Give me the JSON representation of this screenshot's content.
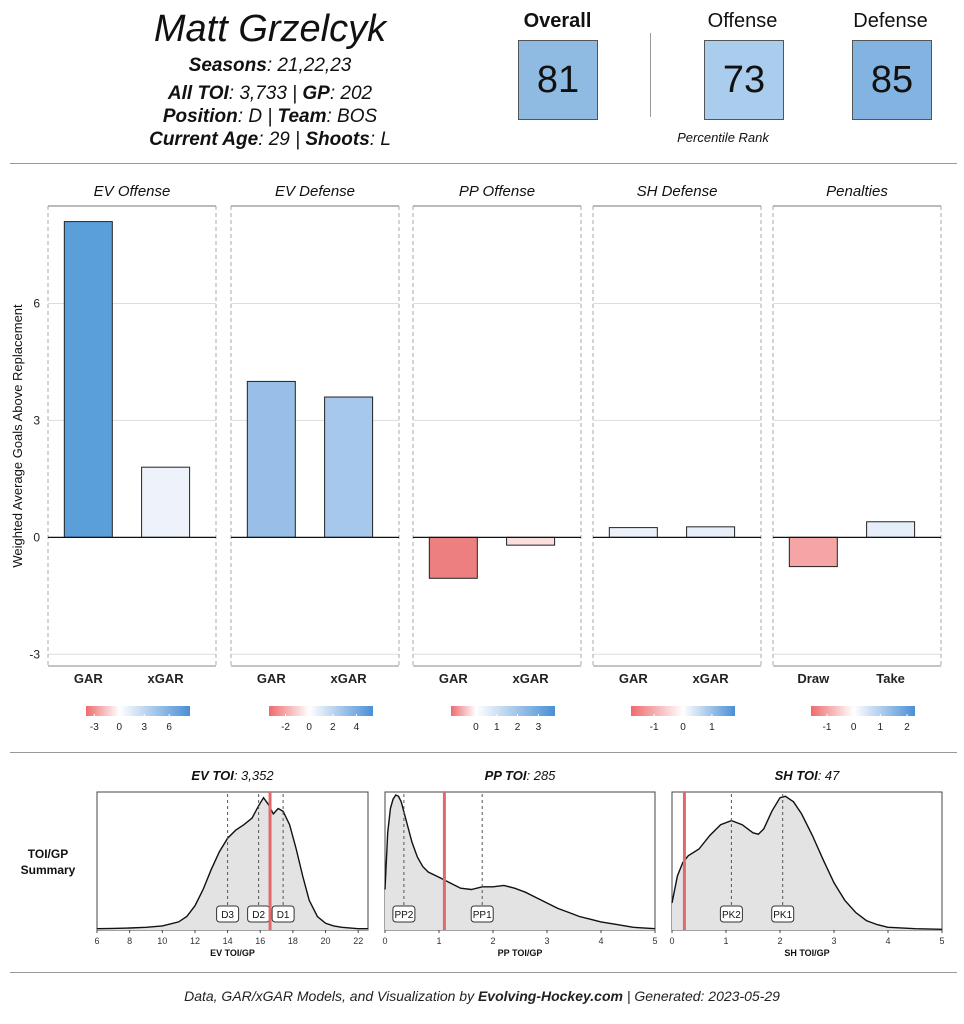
{
  "player": {
    "name": "Matt Grzelcyk",
    "seasons_label": "Seasons",
    "seasons_value": ": 21,22,23",
    "toi_label": "All TOI",
    "toi_value": ": 3,733 | ",
    "gp_label": "GP",
    "gp_value": ": 202",
    "position_label": "Position",
    "position_value": ": D | ",
    "team_label": "Team",
    "team_value": ": BOS",
    "age_label": "Current Age",
    "age_value": ": 29 | ",
    "shoots_label": "Shoots",
    "shoots_value": ": L"
  },
  "ranks": {
    "overall_label": "Overall",
    "overall_value": "81",
    "offense_label": "Offense",
    "offense_value": "73",
    "defense_label": "Defense",
    "defense_value": "85",
    "caption": "Percentile Rank",
    "colors": {
      "overall": "#8fbbe3",
      "offense": "#aacdee",
      "defense": "#83b3e1"
    }
  },
  "chart_data": [
    {
      "type": "bar",
      "title": "Weighted Average Goals Above Replacement by component",
      "ylabel": "Weighted Average Goals Above Replacement",
      "ylim": [
        -3.3,
        8.5
      ],
      "yticks": [
        -3,
        0,
        3,
        6
      ],
      "yticks_labels": [
        "-3",
        "0",
        "3",
        "6"
      ],
      "panels": [
        {
          "title": "EV Offense",
          "categories": [
            "GAR",
            "xGAR"
          ],
          "values": [
            8.1,
            1.8
          ],
          "colors": [
            "#5b9fd9",
            "#eef3fb"
          ],
          "legend": {
            "range": [
              -4,
              8.5
            ],
            "ticks": [
              -3,
              0,
              3,
              6
            ],
            "labels": [
              "-3",
              "0",
              "3",
              "6"
            ]
          }
        },
        {
          "title": "EV Defense",
          "categories": [
            "GAR",
            "xGAR"
          ],
          "values": [
            4.0,
            3.6
          ],
          "colors": [
            "#97bfe8",
            "#a6c8ec"
          ],
          "legend": {
            "range": [
              -3.4,
              5.4
            ],
            "ticks": [
              -2,
              0,
              2,
              4
            ],
            "labels": [
              "-2",
              "0",
              "2",
              "4"
            ]
          }
        },
        {
          "title": "PP Offense",
          "categories": [
            "GAR",
            "xGAR"
          ],
          "values": [
            -1.05,
            -0.2
          ],
          "colors": [
            "#ee7f80",
            "#fbdede"
          ],
          "legend": {
            "range": [
              -1.2,
              3.8
            ],
            "ticks": [
              0,
              1,
              2,
              3
            ],
            "labels": [
              "0",
              "1",
              "2",
              "3"
            ]
          }
        },
        {
          "title": "SH Defense",
          "categories": [
            "GAR",
            "xGAR"
          ],
          "values": [
            0.25,
            0.27
          ],
          "colors": [
            "#edf2fa",
            "#e8effa"
          ],
          "legend": {
            "range": [
              -1.8,
              1.8
            ],
            "ticks": [
              -1,
              0,
              1
            ],
            "labels": [
              "-1",
              "0",
              "1"
            ]
          }
        },
        {
          "title": "Penalties",
          "categories": [
            "Draw",
            "Take"
          ],
          "values": [
            -0.75,
            0.4
          ],
          "colors": [
            "#f5a5a5",
            "#e6eef9"
          ],
          "legend": {
            "range": [
              -1.6,
              2.3
            ],
            "ticks": [
              -1,
              0,
              1,
              2
            ],
            "labels": [
              "-1",
              "0",
              "1",
              "2"
            ]
          }
        }
      ]
    },
    {
      "type": "area",
      "title": "TOI/GP Summary",
      "row_label_1": "TOI/GP",
      "row_label_2": "Summary",
      "panels": [
        {
          "title_bold": "EV TOI",
          "title_rest": ": 3,352",
          "xlabel": "EV TOI/GP",
          "xlim": [
            6,
            22.6
          ],
          "xticks": [
            6,
            8,
            10,
            12,
            14,
            16,
            18,
            20,
            22
          ],
          "xtick_labels": [
            "6",
            "8",
            "10",
            "12",
            "14",
            "16",
            "18",
            "20",
            "22"
          ],
          "player_value": 16.6,
          "markers": [
            {
              "label": "D3",
              "x": 14.0
            },
            {
              "label": "D2",
              "x": 15.9
            },
            {
              "label": "D1",
              "x": 17.4
            }
          ],
          "density": [
            [
              6,
              0.01
            ],
            [
              7,
              0.012
            ],
            [
              8,
              0.015
            ],
            [
              9,
              0.02
            ],
            [
              10,
              0.03
            ],
            [
              11,
              0.06
            ],
            [
              11.5,
              0.1
            ],
            [
              12,
              0.18
            ],
            [
              12.5,
              0.3
            ],
            [
              13,
              0.45
            ],
            [
              13.5,
              0.58
            ],
            [
              14,
              0.68
            ],
            [
              14.5,
              0.74
            ],
            [
              15,
              0.78
            ],
            [
              15.5,
              0.83
            ],
            [
              15.9,
              0.92
            ],
            [
              16.2,
              0.98
            ],
            [
              16.5,
              0.93
            ],
            [
              16.8,
              0.86
            ],
            [
              17.1,
              0.9
            ],
            [
              17.4,
              0.88
            ],
            [
              17.8,
              0.78
            ],
            [
              18.2,
              0.6
            ],
            [
              18.6,
              0.4
            ],
            [
              19,
              0.22
            ],
            [
              19.5,
              0.1
            ],
            [
              20,
              0.05
            ],
            [
              20.5,
              0.03
            ],
            [
              21,
              0.02
            ],
            [
              22,
              0.01
            ],
            [
              22.6,
              0.01
            ]
          ]
        },
        {
          "title_bold": "PP TOI",
          "title_rest": ": 285",
          "xlabel": "PP TOI/GP",
          "xlim": [
            0,
            5
          ],
          "xticks": [
            0,
            1,
            2,
            3,
            4,
            5
          ],
          "xtick_labels": [
            "0",
            "1",
            "2",
            "3",
            "4",
            "5"
          ],
          "player_value": 1.1,
          "markers": [
            {
              "label": "PP2",
              "x": 0.35
            },
            {
              "label": "PP1",
              "x": 1.8
            }
          ],
          "density": [
            [
              0,
              0.3
            ],
            [
              0.05,
              0.72
            ],
            [
              0.1,
              0.9
            ],
            [
              0.15,
              0.97
            ],
            [
              0.2,
              1.0
            ],
            [
              0.25,
              0.99
            ],
            [
              0.3,
              0.95
            ],
            [
              0.4,
              0.8
            ],
            [
              0.5,
              0.65
            ],
            [
              0.6,
              0.54
            ],
            [
              0.7,
              0.47
            ],
            [
              0.8,
              0.43
            ],
            [
              1,
              0.39
            ],
            [
              1.2,
              0.35
            ],
            [
              1.4,
              0.31
            ],
            [
              1.6,
              0.3
            ],
            [
              1.8,
              0.32
            ],
            [
              2,
              0.32
            ],
            [
              2.2,
              0.33
            ],
            [
              2.4,
              0.31
            ],
            [
              2.6,
              0.28
            ],
            [
              2.8,
              0.24
            ],
            [
              3,
              0.2
            ],
            [
              3.2,
              0.16
            ],
            [
              3.4,
              0.13
            ],
            [
              3.6,
              0.1
            ],
            [
              3.8,
              0.08
            ],
            [
              4,
              0.06
            ],
            [
              4.3,
              0.04
            ],
            [
              4.6,
              0.02
            ],
            [
              5,
              0.01
            ]
          ]
        },
        {
          "title_bold": "SH TOI",
          "title_rest": ": 47",
          "xlabel": "SH TOI/GP",
          "xlim": [
            0,
            5
          ],
          "xticks": [
            0,
            1,
            2,
            3,
            4,
            5
          ],
          "xtick_labels": [
            "0",
            "1",
            "2",
            "3",
            "4",
            "5"
          ],
          "player_value": 0.23,
          "markers": [
            {
              "label": "PK2",
              "x": 1.1
            },
            {
              "label": "PK1",
              "x": 2.05
            }
          ],
          "density": [
            [
              0,
              0.2
            ],
            [
              0.1,
              0.4
            ],
            [
              0.2,
              0.5
            ],
            [
              0.3,
              0.55
            ],
            [
              0.5,
              0.6
            ],
            [
              0.7,
              0.7
            ],
            [
              0.9,
              0.78
            ],
            [
              1.1,
              0.81
            ],
            [
              1.3,
              0.78
            ],
            [
              1.5,
              0.72
            ],
            [
              1.6,
              0.71
            ],
            [
              1.7,
              0.75
            ],
            [
              1.85,
              0.88
            ],
            [
              2,
              0.98
            ],
            [
              2.1,
              0.99
            ],
            [
              2.25,
              0.95
            ],
            [
              2.4,
              0.86
            ],
            [
              2.6,
              0.7
            ],
            [
              2.8,
              0.52
            ],
            [
              3,
              0.35
            ],
            [
              3.2,
              0.22
            ],
            [
              3.4,
              0.13
            ],
            [
              3.6,
              0.07
            ],
            [
              3.8,
              0.04
            ],
            [
              4,
              0.02
            ],
            [
              4.5,
              0.01
            ],
            [
              5,
              0.005
            ]
          ]
        }
      ]
    }
  ],
  "footer": {
    "prefix": "Data, GAR/xGAR Models, and Visualization by ",
    "brand": "Evolving-Hockey.com",
    "suffix": "  |  Generated: 2023-05-29"
  }
}
